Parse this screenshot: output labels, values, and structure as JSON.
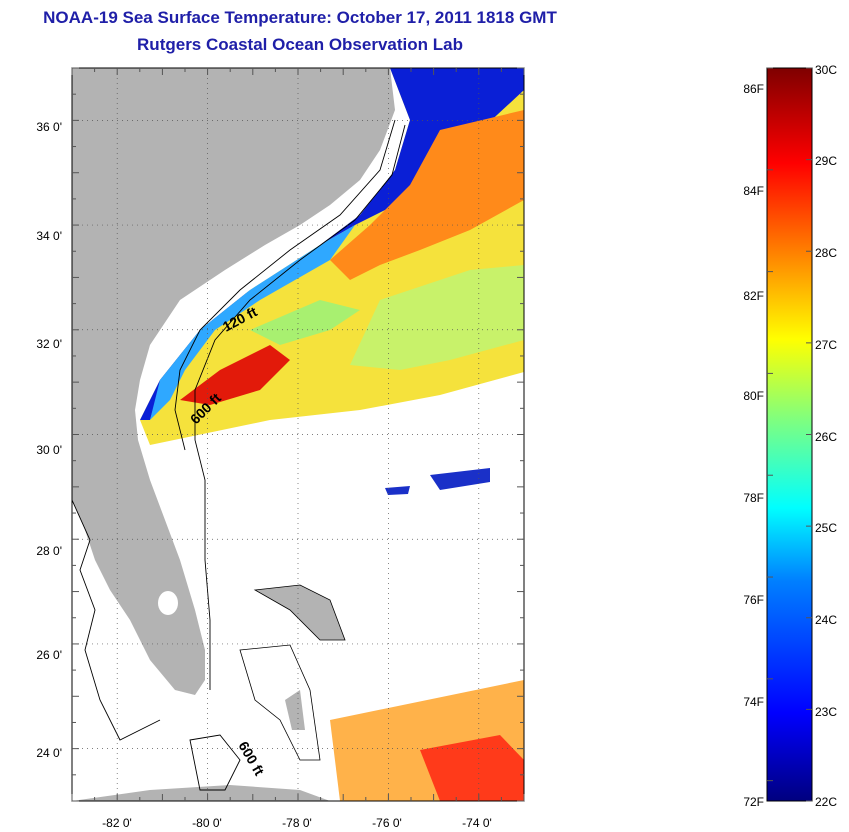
{
  "title": "NOAA-19 Sea Surface Temperature:  October 17, 2011 1818 GMT",
  "subtitle": "Rutgers Coastal Ocean Observation Lab",
  "map": {
    "lat_labels": [
      "36 0'",
      "34 0'",
      "32 0'",
      "30 0'",
      "28 0'",
      "26 0'",
      "24 0'"
    ],
    "lon_labels": [
      "-82 0'",
      "-80 0'",
      "-78 0'",
      "-76 0'",
      "-74 0'"
    ],
    "lat_values": [
      36,
      34,
      32,
      30,
      28,
      26,
      24
    ],
    "lon_values": [
      -82,
      -80,
      -78,
      -76,
      -74
    ],
    "lat_range": [
      23,
      37
    ],
    "lon_range": [
      -83,
      -73
    ],
    "contour_labels": [
      "120 ft",
      "600 ft",
      "600 ft"
    ],
    "land_color": "#b3b3b3"
  },
  "colorbar": {
    "f_labels": [
      "86F",
      "84F",
      "82F",
      "80F",
      "78F",
      "76F",
      "74F",
      "72F"
    ],
    "f_values": [
      86,
      84,
      82,
      80,
      78,
      76,
      74,
      72
    ],
    "c_labels": [
      "30C",
      "29C",
      "28C",
      "27C",
      "26C",
      "25C",
      "24C",
      "23C",
      "22C"
    ],
    "c_values": [
      30,
      29,
      28,
      27,
      26,
      25,
      24,
      23,
      22
    ],
    "range_c": [
      22,
      30
    ],
    "colors": [
      "#00007f",
      "#0000ff",
      "#007fff",
      "#00ffff",
      "#7fff7f",
      "#ffff00",
      "#ff7f00",
      "#ff0000",
      "#7f0000"
    ]
  }
}
